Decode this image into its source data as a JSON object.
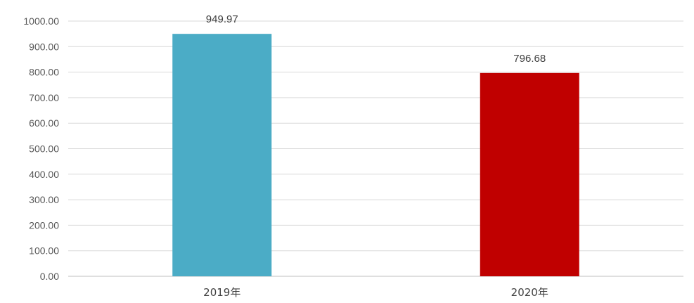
{
  "chart_data": {
    "type": "bar",
    "title": "",
    "xlabel": "",
    "ylabel": "",
    "categories": [
      "2019年",
      "2020年"
    ],
    "values": [
      949.97,
      796.68
    ],
    "data_labels": [
      "949.97",
      "796.68"
    ],
    "bar_colors": [
      "#4bacc6",
      "#c00000"
    ],
    "ylim": [
      0,
      1000
    ],
    "y_ticks": [
      "0.00",
      "100.00",
      "200.00",
      "300.00",
      "400.00",
      "500.00",
      "600.00",
      "700.00",
      "800.00",
      "900.00",
      "1000.00"
    ],
    "grid": true,
    "legend": "none"
  }
}
